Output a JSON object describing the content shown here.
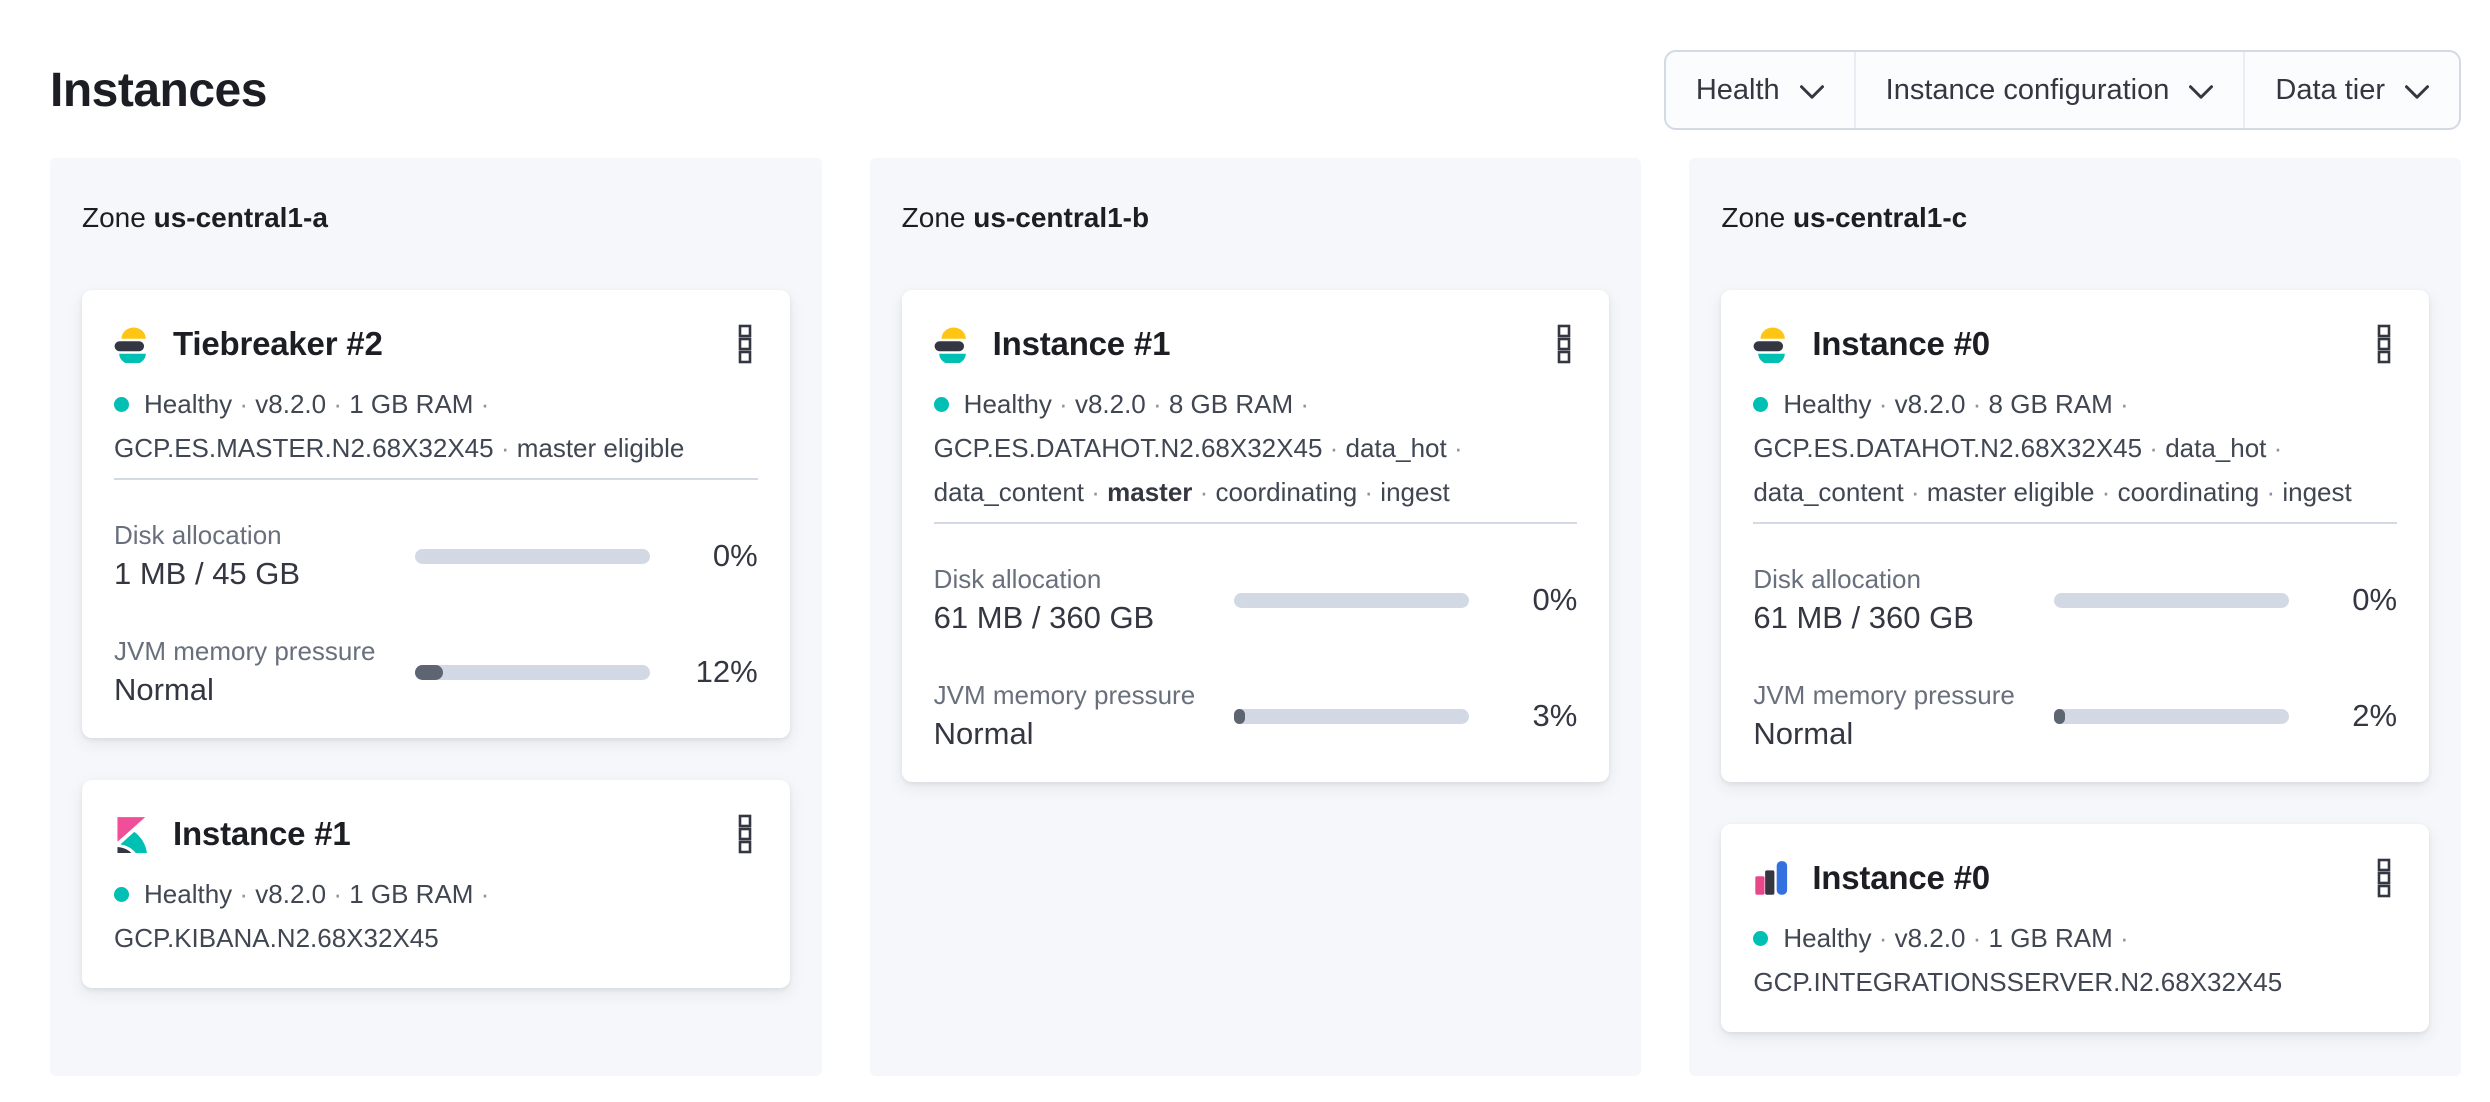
{
  "page": {
    "title": "Instances"
  },
  "zone_label_prefix": "Zone",
  "filters": [
    {
      "id": "health",
      "label": "Health"
    },
    {
      "id": "instance-configuration",
      "label": "Instance configuration"
    },
    {
      "id": "data-tier",
      "label": "Data tier"
    }
  ],
  "colors": {
    "page_background": "#FFFFFF",
    "zone_panel_background": "#F5F7FA",
    "card_background": "#FFFFFF",
    "title_text": "#1D1E24",
    "body_text": "#404752",
    "subdued_text": "#69707D",
    "separator_dot": "#8B93A3",
    "divider": "#D3DAE6",
    "meter_track": "#D2D9E5",
    "meter_fill": "#5E6572",
    "health_dot": "#00BFB3",
    "filter_border": "#D3DAE6",
    "elasticsearch_yellow": "#FEC514",
    "elasticsearch_dark": "#343741",
    "elasticsearch_teal": "#00BFB3",
    "kibana_pink": "#F04E98",
    "integrations_pink": "#E8488B",
    "integrations_blue": "#3370E0"
  },
  "zones": [
    {
      "name": "us-central1-a",
      "cards": [
        {
          "logo": "elasticsearch",
          "title": "Tiebreaker #2",
          "health": "Healthy",
          "meta_lines": [
            "Healthy · v8.2.0 · 1 GB RAM ·",
            "GCP.ES.MASTER.N2.68X32X45 · master eligible"
          ],
          "metrics": [
            {
              "label": "Disk allocation",
              "value": "1 MB / 45 GB",
              "percent": 0,
              "percent_label": "0%"
            },
            {
              "label": "JVM memory pressure",
              "value": "Normal",
              "percent": 12,
              "percent_label": "12%"
            }
          ]
        },
        {
          "logo": "kibana",
          "title": "Instance #1",
          "health": "Healthy",
          "meta_lines": [
            "Healthy · v8.2.0 · 1 GB RAM ·",
            "GCP.KIBANA.N2.68X32X45"
          ],
          "metrics": []
        }
      ]
    },
    {
      "name": "us-central1-b",
      "cards": [
        {
          "logo": "elasticsearch",
          "title": "Instance #1",
          "health": "Healthy",
          "meta_lines": [
            "Healthy · v8.2.0 · 8 GB RAM ·",
            "GCP.ES.DATAHOT.N2.68X32X45 · data_hot ·",
            "data_content · master · coordinating · ingest"
          ],
          "bold": {
            "line": 2,
            "text": "master"
          },
          "metrics": [
            {
              "label": "Disk allocation",
              "value": "61 MB / 360 GB",
              "percent": 0,
              "percent_label": "0%"
            },
            {
              "label": "JVM memory pressure",
              "value": "Normal",
              "percent": 3,
              "percent_label": "3%"
            }
          ]
        }
      ]
    },
    {
      "name": "us-central1-c",
      "cards": [
        {
          "logo": "elasticsearch",
          "title": "Instance #0",
          "health": "Healthy",
          "meta_lines": [
            "Healthy · v8.2.0 · 8 GB RAM ·",
            "GCP.ES.DATAHOT.N2.68X32X45 · data_hot ·",
            "data_content · master eligible · coordinating · ingest"
          ],
          "metrics": [
            {
              "label": "Disk allocation",
              "value": "61 MB / 360 GB",
              "percent": 0,
              "percent_label": "0%"
            },
            {
              "label": "JVM memory pressure",
              "value": "Normal",
              "percent": 2,
              "percent_label": "2%"
            }
          ]
        },
        {
          "logo": "integrations-server",
          "title": "Instance #0",
          "health": "Healthy",
          "meta_lines": [
            "Healthy · v8.2.0 · 1 GB RAM ·",
            "GCP.INTEGRATIONSSERVER.N2.68X32X45"
          ],
          "metrics": []
        }
      ]
    }
  ]
}
